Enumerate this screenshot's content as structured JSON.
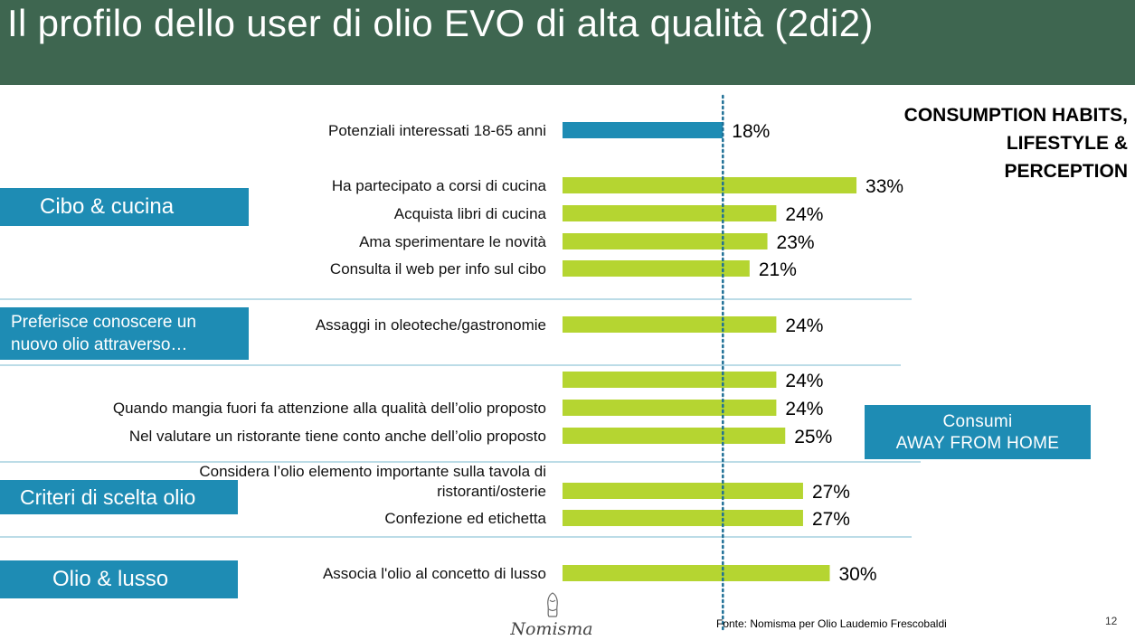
{
  "title": "Il profilo dello user di olio EVO di alta qualità (2di2)",
  "section_heading": [
    "CONSUMPTION HABITS,",
    "LIFESTYLE &",
    "PERCEPTION"
  ],
  "categories": {
    "cibo": "Cibo & cucina",
    "nuovo_olio": [
      "Preferisce conoscere un",
      "nuovo olio attraverso…"
    ],
    "criteri": "Criteri di scelta olio",
    "lusso": "Olio & lusso"
  },
  "away_box": [
    "Consumi",
    "AWAY FROM HOME"
  ],
  "source": "Fonte: Nomisma per Olio Laudemio Frescobaldi",
  "page_number": "12",
  "logo_text": "Nomisma",
  "colors": {
    "header": "#3e6650",
    "category": "#1e8cb4",
    "baseline_bar": "#1e8cb4",
    "bar": "#b5d531",
    "separator": "#7ab8cf",
    "reference_line": "#1e6f95"
  },
  "chart_data": {
    "type": "bar",
    "orientation": "horizontal",
    "unit": "%",
    "xlim": [
      0,
      33
    ],
    "reference_value": 18,
    "categories": [
      "Potenziali interessati 18-65 anni",
      "Ha partecipato a corsi di cucina",
      "Acquista libri di cucina",
      "Ama sperimentare le novità",
      "Consulta il web per info sul cibo",
      "Assaggi in oleoteche/gastronomie",
      "",
      "Quando mangia fuori fa attenzione alla qualità dell’olio proposto",
      "Nel valutare un ristorante tiene conto anche dell’olio proposto",
      "Considera l’olio elemento importante sulla tavola di ristoranti/osterie",
      "Confezione ed etichetta",
      "Associa l'olio al concetto di lusso"
    ],
    "values": [
      18,
      33,
      24,
      23,
      21,
      24,
      24,
      24,
      25,
      27,
      27,
      30
    ],
    "value_labels": [
      "18%",
      "33%",
      "24%",
      "23%",
      "21%",
      "24%",
      "24%",
      "24%",
      "25%",
      "27%",
      "27%",
      "30%"
    ],
    "highlight_index": 0,
    "groups": [
      "Cibo & cucina",
      "Preferisce conoscere un nuovo olio attraverso…",
      "Consumi AWAY FROM HOME",
      "Criteri di scelta olio",
      "Olio & lusso"
    ]
  }
}
